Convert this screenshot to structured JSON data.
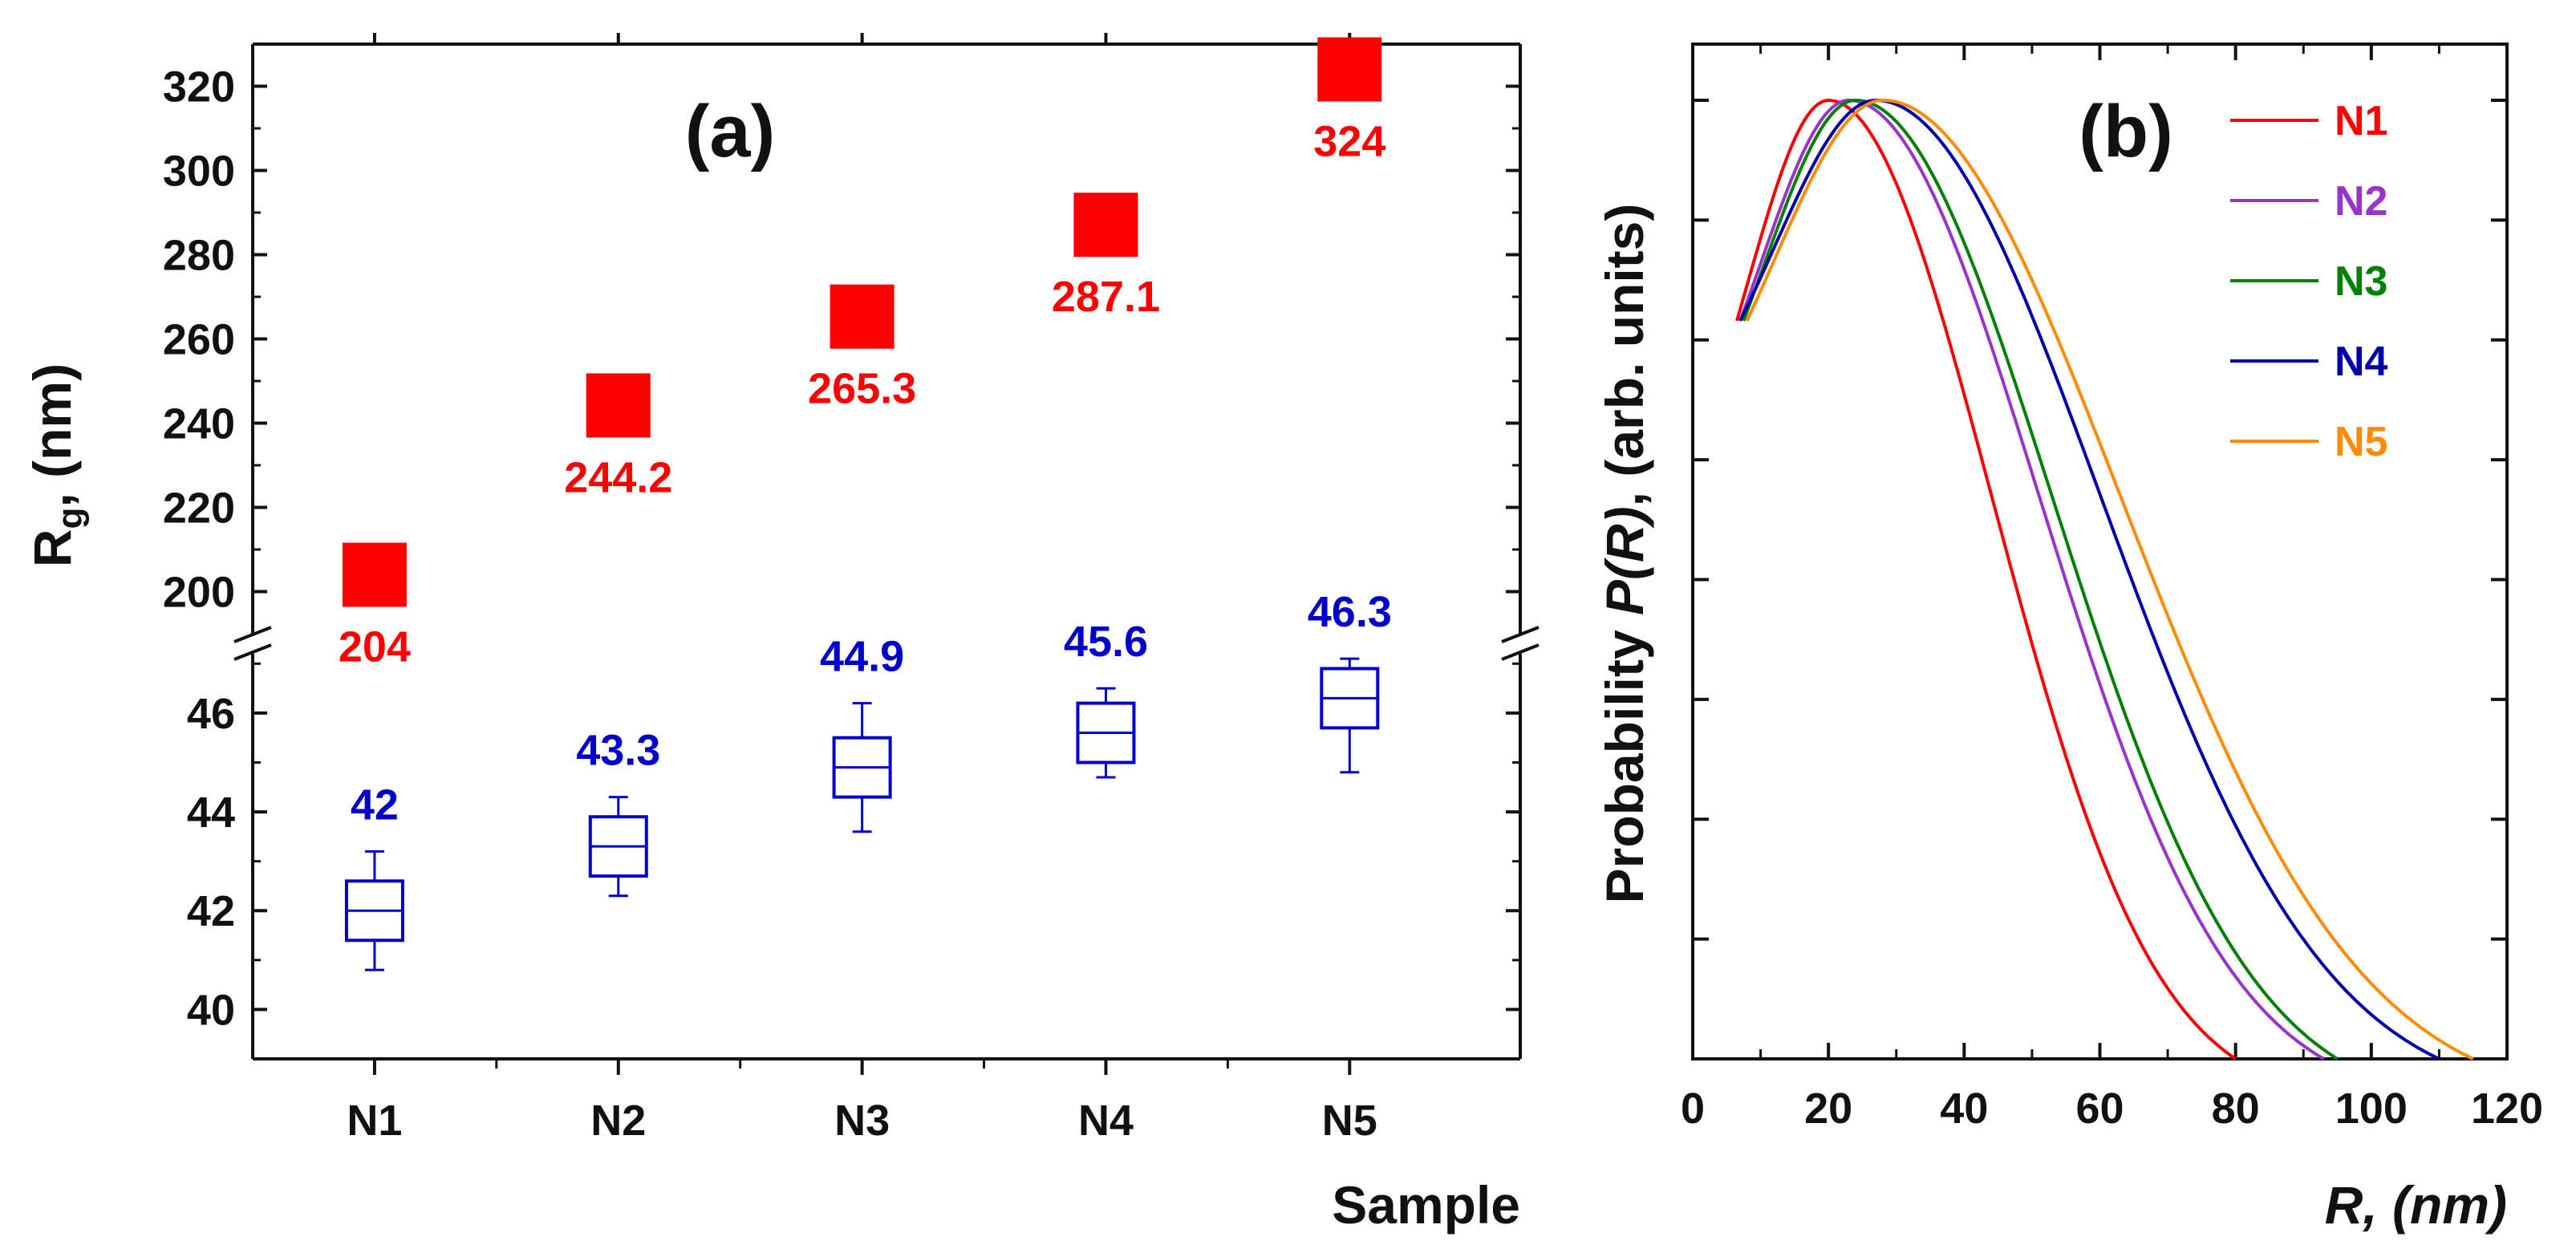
{
  "chart_data": [
    {
      "panel": "(a)",
      "type": "scatter",
      "xlabel": "Sample",
      "ylabel": "R",
      "ylabel_sub": "g",
      "ylabel_suffix": ", (nm)",
      "categories": [
        "N1",
        "N2",
        "N3",
        "N4",
        "N5"
      ],
      "axis_break": true,
      "upper_ylim": [
        190,
        330
      ],
      "upper_yticks": [
        "200",
        "220",
        "240",
        "260",
        "280",
        "300",
        "320"
      ],
      "lower_ylim": [
        39,
        47.2
      ],
      "lower_yticks": [
        "40",
        "42",
        "44",
        "46"
      ],
      "series": [
        {
          "name": "upper",
          "marker": "filled-square",
          "color": "#ff0000",
          "values": [
            204,
            244.2,
            265.3,
            287.1,
            324
          ],
          "labels": [
            "204",
            "244.2",
            "265.3",
            "287.1",
            "324"
          ]
        },
        {
          "name": "lower",
          "marker": "box-whisker",
          "color": "#0000cc",
          "values": [
            42,
            43.3,
            44.9,
            45.6,
            46.3
          ],
          "labels": [
            "42",
            "43.3",
            "44.9",
            "45.6",
            "46.3"
          ],
          "box_low": [
            41.4,
            42.7,
            44.3,
            45.0,
            45.7
          ],
          "box_high": [
            42.6,
            43.9,
            45.5,
            46.2,
            46.9
          ],
          "whisker_low": [
            40.8,
            42.3,
            43.6,
            44.7,
            44.8
          ],
          "whisker_high": [
            43.2,
            44.3,
            46.2,
            46.5,
            47.1
          ]
        }
      ]
    },
    {
      "panel": "(b)",
      "type": "line",
      "xlabel": "R, (nm)",
      "ylabel_prefix": "Probability ",
      "ylabel_italic": "P(R)",
      "ylabel_suffix": ", (arb. units)",
      "xlim": [
        0,
        120
      ],
      "xticks": [
        "0",
        "20",
        "40",
        "60",
        "80",
        "100",
        "120"
      ],
      "ylim": [
        0,
        1
      ],
      "legend_position": "top-right",
      "series": [
        {
          "name": "N1",
          "color": "#ff0000",
          "peak": 20,
          "start": 6.5,
          "end": 80,
          "sigma_left": 12,
          "sigma_right": 24,
          "start_level": 0.77
        },
        {
          "name": "N2",
          "color": "#9933cc",
          "peak": 23,
          "start": 7.0,
          "end": 93,
          "sigma_left": 13,
          "sigma_right": 28,
          "start_level": 0.77
        },
        {
          "name": "N3",
          "color": "#008000",
          "peak": 24,
          "start": 7.5,
          "end": 95,
          "sigma_left": 13.5,
          "sigma_right": 29,
          "start_level": 0.77
        },
        {
          "name": "N4",
          "color": "#0000aa",
          "peak": 27,
          "start": 7.0,
          "end": 110,
          "sigma_left": 15,
          "sigma_right": 33,
          "start_level": 0.77
        },
        {
          "name": "N5",
          "color": "#ff8c00",
          "peak": 28,
          "start": 8.0,
          "end": 115,
          "sigma_left": 16,
          "sigma_right": 35,
          "start_level": 0.77
        }
      ]
    }
  ]
}
